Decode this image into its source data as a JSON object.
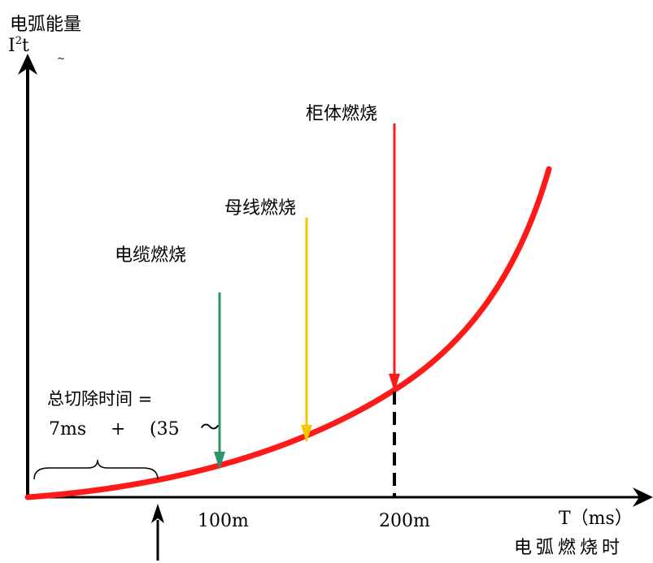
{
  "y_axis": {
    "title": "电弧能量",
    "unit_base": "I",
    "unit_sup": "2",
    "unit_tail": "t",
    "mark": "~"
  },
  "x_axis": {
    "unit": "T（ms）",
    "title": "电弧燃烧时",
    "ticks": [
      "100m",
      "200m"
    ]
  },
  "markers": [
    {
      "label": "电缆燃烧",
      "color": "#2e9466"
    },
    {
      "label": "母线燃烧",
      "color": "#f2c700"
    },
    {
      "label": "柜体燃烧",
      "color": "#ff1a1a"
    }
  ],
  "curve": {
    "color": "#ff1a1a"
  },
  "annotation": {
    "line1": "总切除时间 =",
    "line2_a": "7ms",
    "line2_b": "+",
    "line2_c": "(35",
    "line2_d": "～"
  }
}
